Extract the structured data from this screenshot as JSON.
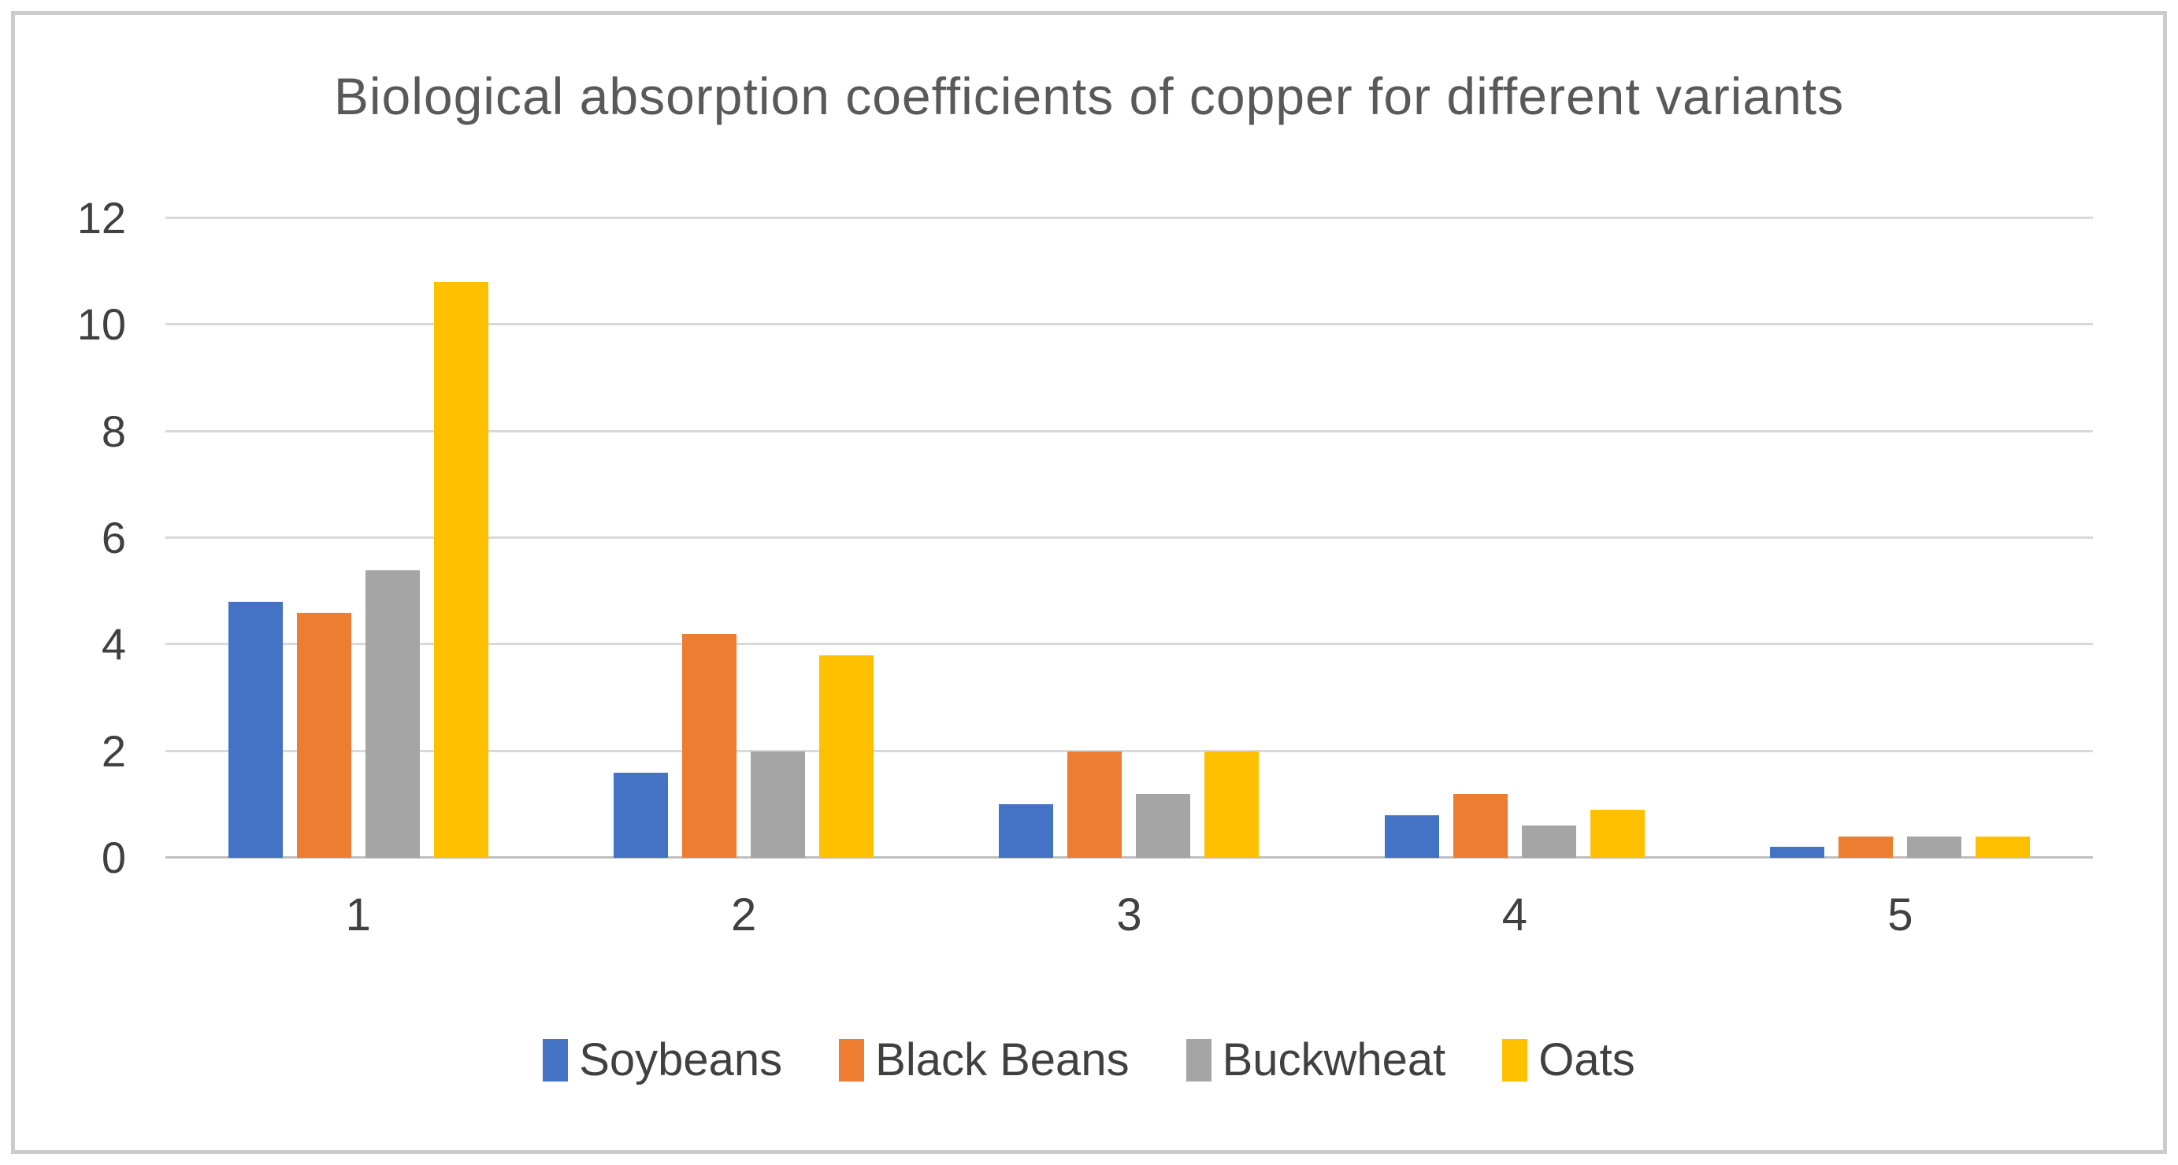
{
  "frame": {
    "border_color": "#cbcbcb",
    "background_color": "#ffffff"
  },
  "chart_data": {
    "type": "bar",
    "title": "Biological absorption coefficients of copper for different variants",
    "title_color": "#595959",
    "categories": [
      "1",
      "2",
      "3",
      "4",
      "5"
    ],
    "series": [
      {
        "name": "Soybeans",
        "color": "#4472C4",
        "values": [
          4.8,
          1.6,
          1.0,
          0.8,
          0.2
        ]
      },
      {
        "name": "Black Beans",
        "color": "#ED7D31",
        "values": [
          4.6,
          4.2,
          2.0,
          1.2,
          0.4
        ]
      },
      {
        "name": "Buckwheat",
        "color": "#A5A5A5",
        "values": [
          5.4,
          2.0,
          1.2,
          0.6,
          0.4
        ]
      },
      {
        "name": "Oats",
        "color": "#FFC000",
        "values": [
          10.8,
          3.8,
          2.0,
          0.9,
          0.4
        ]
      }
    ],
    "xlabel": "",
    "ylabel": "",
    "ylim": [
      0,
      12
    ],
    "yticks": [
      0,
      2,
      4,
      6,
      8,
      10,
      12
    ],
    "grid": true,
    "gridline_color": "#d9d9d9",
    "axis_line_color": "#bfbfbf",
    "tick_label_color": "#404040",
    "legend_position": "bottom"
  }
}
